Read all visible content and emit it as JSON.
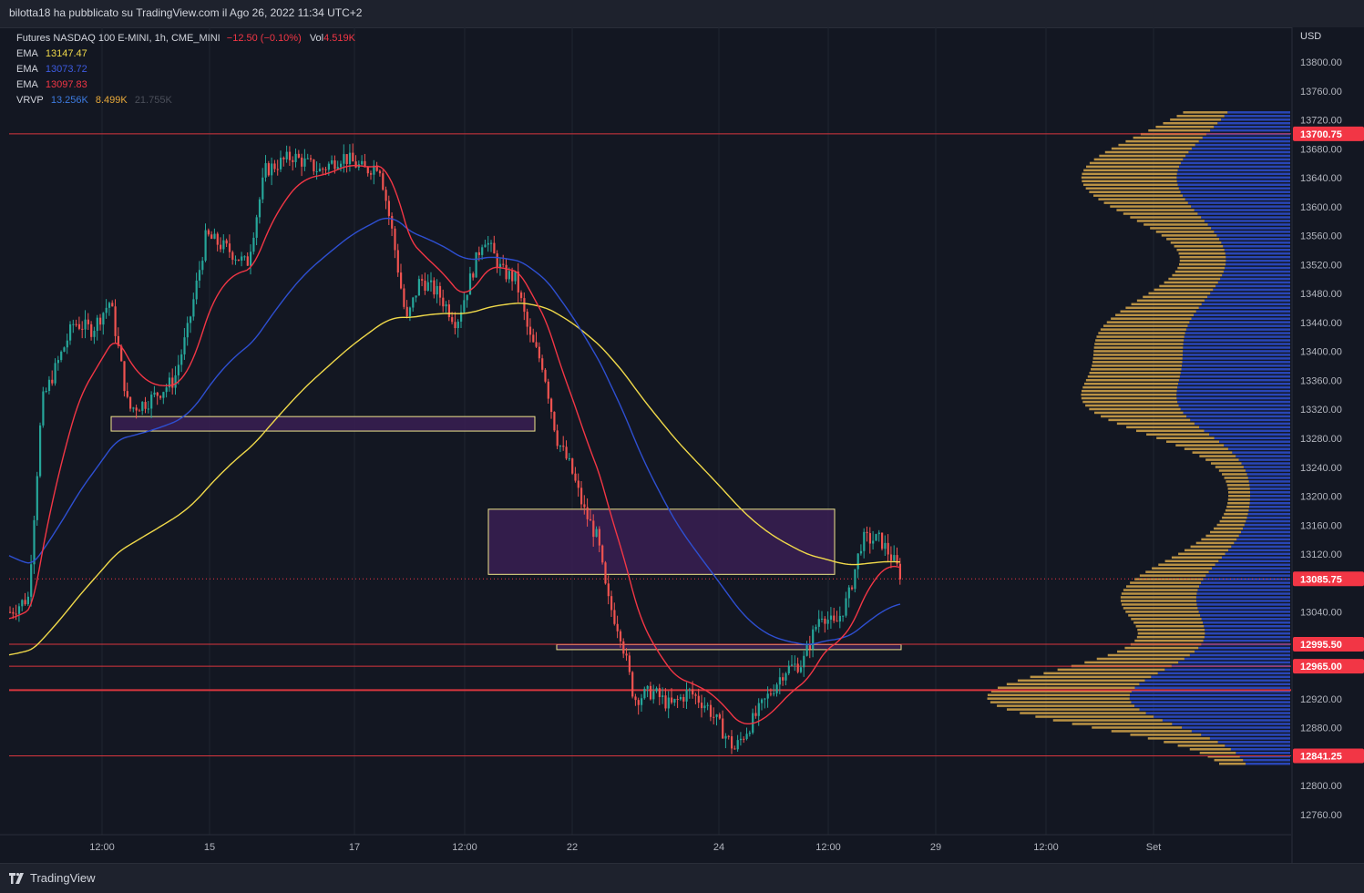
{
  "byline": "bilotta18 ha pubblicato su TradingView.com il Ago 26, 2022 11:34 UTC+2",
  "legend": {
    "symbol": "Futures NASDAQ 100 E-MINI, 1h, CME_MINI",
    "change": "−12.50 (−0.10%)",
    "vol_label": "Vol",
    "vol_value": "4.519K",
    "ema1_label": "EMA",
    "ema1_value": "13147.47",
    "ema1_color": "#f0d94a",
    "ema2_label": "EMA",
    "ema2_value": "13073.72",
    "ema2_color": "#2e4fd1",
    "ema3_label": "EMA",
    "ema3_value": "13097.83",
    "ema3_color": "#f23645",
    "vrvp_label": "VRVP",
    "vrvp_up": "13.256K",
    "vrvp_down": "8.499K",
    "vrvp_total": "21.755K"
  },
  "currency": "USD",
  "price_axis": {
    "ticks": [
      "13800.00",
      "13760.00",
      "13720.00",
      "13680.00",
      "13640.00",
      "13600.00",
      "13560.00",
      "13520.00",
      "13480.00",
      "13440.00",
      "13400.00",
      "13360.00",
      "13320.00",
      "13280.00",
      "13240.00",
      "13200.00",
      "13160.00",
      "13120.00",
      "13040.00",
      "12920.00",
      "12880.00",
      "12800.00",
      "12760.00"
    ],
    "tick_values": [
      13800,
      13760,
      13720,
      13680,
      13640,
      13600,
      13560,
      13520,
      13480,
      13440,
      13400,
      13360,
      13320,
      13280,
      13240,
      13200,
      13160,
      13120,
      13040,
      12920,
      12880,
      12800,
      12760
    ]
  },
  "price_tags": [
    {
      "label": "13700.75",
      "value": 13700.75,
      "color": "#f23645"
    },
    {
      "label": "13085.75",
      "value": 13085.75,
      "color": "#f23645"
    },
    {
      "label": "12995.50",
      "value": 12995.5,
      "color": "#f23645"
    },
    {
      "label": "12965.00",
      "value": 12965.0,
      "color": "#f23645"
    },
    {
      "label": "12841.25",
      "value": 12841.25,
      "color": "#f23645"
    }
  ],
  "time_axis": [
    "12:00",
    "15",
    "17",
    "12:00",
    "22",
    "24",
    "12:00",
    "29",
    "12:00",
    "Set"
  ],
  "horizontal_levels": [
    13700.75,
    12995.5,
    12965.0,
    12932.0,
    12841.25
  ],
  "zones": [
    {
      "from": 13290,
      "to": 13310
    },
    {
      "from": 13092,
      "to": 13182
    },
    {
      "from": 12988,
      "to": 12995
    }
  ],
  "footer_brand": "TradingView",
  "colors": {
    "bg": "#131722",
    "up": "#26a69a",
    "down": "#ef5350",
    "grid": "#1f2430",
    "ema_yellow": "#f0d94a",
    "ema_blue": "#2e4fd1",
    "ema_red": "#f23645",
    "vp_up": "#2e4fd1",
    "vp_down": "#d8a84a"
  }
}
